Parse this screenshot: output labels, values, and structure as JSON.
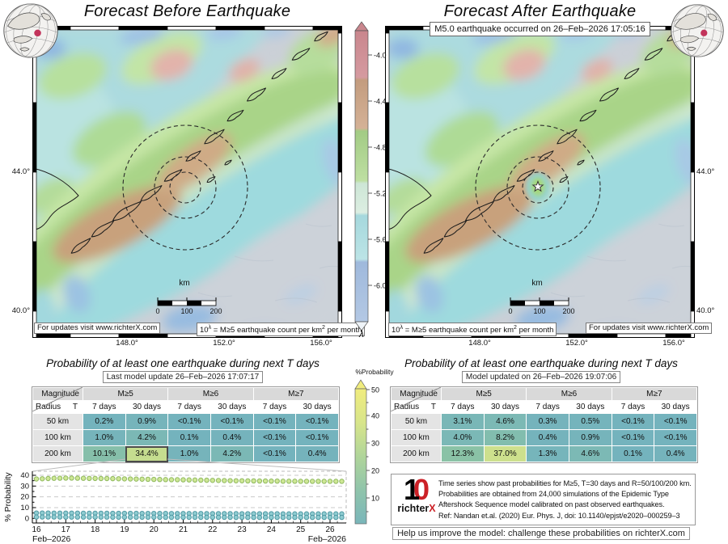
{
  "left_panel": {
    "title": "Forecast Before Earthquake",
    "map": {
      "lat_ticks": [
        "44.0°",
        "40.0°"
      ],
      "lon_ticks": [
        "148.0°",
        "152.0°",
        "156.0°"
      ],
      "updates_box": "For updates visit www.richterX.com",
      "rate_box": {
        "base": "10",
        "sup1": "λ",
        "mid": " = M≥5 earthquake count per km",
        "sup2": "2",
        "end": " per month"
      },
      "scalebar": {
        "unit": "km",
        "ticks": [
          "0",
          "100",
          "200"
        ]
      },
      "radius_circles_km": [
        50,
        100,
        200
      ]
    },
    "prob": {
      "title": "Probability of at least one earthquake during next T days",
      "subtitle": "Last model update 26–Feb–2026 17:07:17",
      "table": {
        "corner_top": "Magnitude",
        "corner_left": "Radius",
        "corner_t": "T",
        "mag_headers": [
          "M≥5",
          "M≥6",
          "M≥7"
        ],
        "period_headers": [
          "7 days",
          "30 days",
          "7 days",
          "30 days",
          "7 days",
          "30 days"
        ],
        "rows": [
          {
            "label": "50 km",
            "values": [
              "0.2%",
              "0.9%",
              "<0.1%",
              "<0.1%",
              "<0.1%",
              "<0.1%"
            ]
          },
          {
            "label": "100 km",
            "values": [
              "1.0%",
              "4.2%",
              "0.1%",
              "0.4%",
              "<0.1%",
              "<0.1%"
            ]
          },
          {
            "label": "200 km",
            "values": [
              "10.1%",
              "34.4%",
              "1.0%",
              "4.2%",
              "<0.1%",
              "0.4%"
            ]
          }
        ],
        "highlight": {
          "row": 2,
          "col": 1
        }
      }
    }
  },
  "right_panel": {
    "title": "Forecast After Earthquake",
    "banner": "M5.0 earthquake occurred on 26–Feb–2026 17:05:16",
    "map": {
      "lat_ticks": [
        "44.0°",
        "40.0°"
      ],
      "lon_ticks": [
        "148.0°",
        "152.0°",
        "156.0°"
      ],
      "updates_box": "For updates visit www.richterX.com",
      "rate_box": {
        "base": "10",
        "sup1": "λ",
        "mid": " = M≥5 earthquake count per km",
        "sup2": "2",
        "end": " per month"
      },
      "scalebar": {
        "unit": "km",
        "ticks": [
          "0",
          "100",
          "200"
        ]
      },
      "radius_circles_km": [
        50,
        100,
        200
      ],
      "epicenter_marker": "star"
    },
    "prob": {
      "title": "Probability of at least one earthquake during next T days",
      "subtitle": "Model updated on 26–Feb–2026 19:07:06",
      "table": {
        "corner_top": "Magnitude",
        "corner_left": "Radius",
        "corner_t": "T",
        "mag_headers": [
          "M≥5",
          "M≥6",
          "M≥7"
        ],
        "period_headers": [
          "7 days",
          "30 days",
          "7 days",
          "30 days",
          "7 days",
          "30 days"
        ],
        "rows": [
          {
            "label": "50 km",
            "values": [
              "3.1%",
              "4.6%",
              "0.3%",
              "0.5%",
              "<0.1%",
              "<0.1%"
            ]
          },
          {
            "label": "100 km",
            "values": [
              "4.0%",
              "8.2%",
              "0.4%",
              "0.9%",
              "<0.1%",
              "<0.1%"
            ]
          },
          {
            "label": "200 km",
            "values": [
              "12.3%",
              "37.0%",
              "1.3%",
              "4.6%",
              "0.1%",
              "0.4%"
            ]
          }
        ],
        "highlight": null
      }
    }
  },
  "lambda_colorbar": {
    "label": "λ",
    "ticks": [
      "-4.0",
      "-4.4",
      "-4.8",
      "-5.2",
      "-5.6",
      "-6.0"
    ]
  },
  "prob_colorbar": {
    "label": "%Probability",
    "ticks": [
      "50",
      "40",
      "30",
      "20",
      "10"
    ]
  },
  "info_panel": {
    "logo_mark_1": "1",
    "logo_mark_0": "0",
    "logo_text": "richter",
    "logo_x": "X",
    "lines": [
      "Time series show past probabilities for M≥5, T=30 days and R=50/100/200 km.",
      "Probabilities are obtained from 24,000 simulations of the Epidemic Type",
      "Aftershock Sequence model calibrated on past observed earthquakes.",
      "Ref: Nandan et.al. (2020) Eur. Phys. J, doi: 10.1140/epjst/e2020–000259–3"
    ]
  },
  "challenge": "Help us improve the model: challenge these probabilities on richterX.com",
  "chart_data": {
    "type": "scatter",
    "title": "Past probabilities time series",
    "ylabel": "% Probability",
    "x_axis_label_left": "Feb–2026",
    "x_axis_label_right": "Feb–2026",
    "xticks": [
      16,
      17,
      18,
      19,
      20,
      21,
      22,
      23,
      24,
      25,
      26
    ],
    "yticks": [
      0,
      10,
      20,
      30,
      40
    ],
    "xlim": [
      15.85,
      26.55
    ],
    "ylim": [
      -4.5,
      43.5
    ],
    "grid": "horizontal dashed",
    "x": [
      16.0,
      16.2,
      16.4,
      16.6,
      16.8,
      17.0,
      17.2,
      17.4,
      17.6,
      17.8,
      18.0,
      18.2,
      18.4,
      18.6,
      18.8,
      19.0,
      19.2,
      19.4,
      19.6,
      19.8,
      20.0,
      20.2,
      20.4,
      20.6,
      20.8,
      21.0,
      21.2,
      21.4,
      21.6,
      21.8,
      22.0,
      22.2,
      22.4,
      22.6,
      22.8,
      23.0,
      23.2,
      23.4,
      23.6,
      23.8,
      24.0,
      24.2,
      24.4,
      24.6,
      24.8,
      25.0,
      25.2,
      25.4,
      25.6,
      25.8,
      26.0,
      26.2,
      26.4
    ],
    "series": [
      {
        "name": "M≥5, T=30 days, R=200 km",
        "fill": "#cfe796",
        "edge": "#8fb95e",
        "values": [
          36.6,
          36.8,
          37.0,
          37.2,
          37.3,
          37.4,
          37.4,
          37.3,
          37.2,
          37.1,
          37.1,
          37.0,
          37.0,
          36.9,
          36.8,
          36.7,
          36.6,
          36.5,
          36.4,
          36.3,
          36.2,
          36.1,
          36.0,
          35.9,
          35.9,
          35.8,
          35.7,
          35.6,
          35.5,
          35.4,
          35.3,
          35.2,
          35.1,
          35.0,
          34.9,
          34.9,
          34.8,
          34.8,
          34.7,
          34.7,
          34.6,
          34.6,
          34.5,
          34.5,
          34.5,
          34.4,
          34.4,
          34.4,
          34.4,
          34.4,
          34.4,
          34.4,
          34.4
        ]
      },
      {
        "name": "M≥5, T=30 days, R=100 km",
        "fill": "#8fccd1",
        "edge": "#4f98a3",
        "values": [
          5.0,
          5.0,
          5.0,
          4.9,
          4.9,
          4.9,
          4.9,
          4.9,
          4.8,
          4.8,
          4.8,
          4.8,
          4.8,
          4.7,
          4.7,
          4.7,
          4.7,
          4.7,
          4.6,
          4.6,
          4.6,
          4.6,
          4.6,
          4.5,
          4.5,
          4.5,
          4.5,
          4.5,
          4.5,
          4.4,
          4.4,
          4.4,
          4.4,
          4.4,
          4.4,
          4.3,
          4.3,
          4.3,
          4.3,
          4.3,
          4.3,
          4.3,
          4.2,
          4.2,
          4.2,
          4.2,
          4.2,
          4.2,
          4.2,
          4.2,
          4.2,
          4.2,
          4.2
        ]
      },
      {
        "name": "M≥5, T=30 days, R=50 km",
        "fill": "#8fccd1",
        "edge": "#4f98a3",
        "values": [
          1.3,
          1.3,
          1.3,
          1.3,
          1.3,
          1.2,
          1.2,
          1.2,
          1.2,
          1.2,
          1.2,
          1.2,
          1.2,
          1.1,
          1.1,
          1.1,
          1.1,
          1.1,
          1.1,
          1.1,
          1.1,
          1.0,
          1.0,
          1.0,
          1.0,
          1.0,
          1.0,
          1.0,
          1.0,
          1.0,
          1.0,
          1.0,
          1.0,
          1.0,
          0.9,
          0.9,
          0.9,
          0.9,
          0.9,
          0.9,
          0.9,
          0.9,
          0.9,
          0.9,
          0.9,
          0.9,
          0.9,
          0.9,
          0.9,
          0.9,
          0.9,
          0.9,
          0.9
        ]
      }
    ]
  }
}
